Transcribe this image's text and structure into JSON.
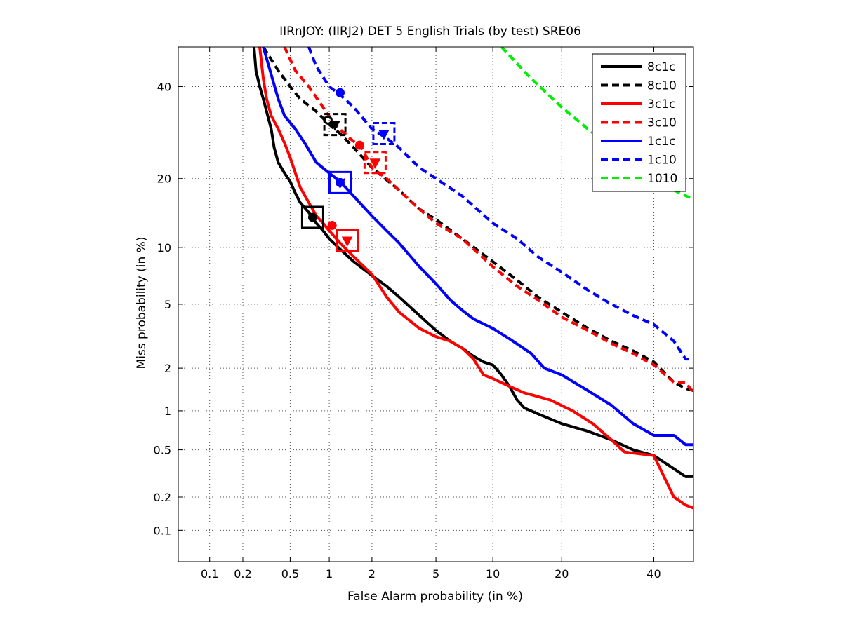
{
  "chart_data": {
    "type": "line",
    "title": "IIRnJOY: (IIRJ2) DET 5 English Trials (by test) SRE06",
    "xlabel": "False Alarm probability (in %)",
    "ylabel": "Miss probability (in %)",
    "scale": "normal-deviate (probit) on both axes",
    "xlim": [
      0.05,
      50
    ],
    "ylim": [
      0.05,
      50
    ],
    "grid": true,
    "legend_position": "top-right",
    "x_ticks": [
      0.1,
      0.2,
      0.5,
      1,
      2,
      5,
      10,
      20,
      40
    ],
    "x_tick_labels": [
      "0.1",
      "0.2",
      "0.5",
      "1",
      "2",
      "5",
      "10",
      "20",
      "40"
    ],
    "y_ticks": [
      0.1,
      0.2,
      0.5,
      1,
      2,
      5,
      10,
      20,
      40
    ],
    "y_tick_labels": [
      "0.1",
      "0.2",
      "0.5",
      "1",
      "2",
      "5",
      "10",
      "20",
      "40"
    ],
    "series": [
      {
        "name": "8c1c",
        "color": "#000000",
        "dashed": false,
        "points": [
          [
            0.25,
            50
          ],
          [
            0.26,
            44
          ],
          [
            0.28,
            40
          ],
          [
            0.3,
            37
          ],
          [
            0.32,
            34
          ],
          [
            0.35,
            30
          ],
          [
            0.37,
            26
          ],
          [
            0.4,
            23
          ],
          [
            0.45,
            21
          ],
          [
            0.5,
            19.5
          ],
          [
            0.55,
            17.5
          ],
          [
            0.6,
            16
          ],
          [
            0.7,
            14.5
          ],
          [
            0.8,
            13
          ],
          [
            0.9,
            12
          ],
          [
            1,
            11
          ],
          [
            1.2,
            9.8
          ],
          [
            1.5,
            8.5
          ],
          [
            2,
            7.2
          ],
          [
            2.5,
            6.3
          ],
          [
            3,
            5.5
          ],
          [
            4,
            4.3
          ],
          [
            5,
            3.5
          ],
          [
            6,
            3.0
          ],
          [
            7,
            2.7
          ],
          [
            8,
            2.4
          ],
          [
            9,
            2.2
          ],
          [
            10,
            2.1
          ],
          [
            11,
            1.8
          ],
          [
            12,
            1.5
          ],
          [
            13,
            1.2
          ],
          [
            14,
            1.05
          ],
          [
            16,
            0.95
          ],
          [
            20,
            0.8
          ],
          [
            25,
            0.7
          ],
          [
            30,
            0.6
          ],
          [
            35,
            0.5
          ],
          [
            40,
            0.45
          ],
          [
            45,
            0.35
          ],
          [
            48,
            0.3
          ],
          [
            50,
            0.3
          ]
        ]
      },
      {
        "name": "8c10",
        "color": "#000000",
        "dashed": true,
        "points": [
          [
            0.3,
            50
          ],
          [
            0.4,
            44
          ],
          [
            0.5,
            40
          ],
          [
            0.6,
            37
          ],
          [
            0.8,
            34
          ],
          [
            1,
            31
          ],
          [
            1.2,
            29
          ],
          [
            1.5,
            26
          ],
          [
            2,
            22
          ],
          [
            3,
            18
          ],
          [
            4,
            15
          ],
          [
            5,
            13.5
          ],
          [
            7,
            11
          ],
          [
            10,
            8.5
          ],
          [
            13,
            6.8
          ],
          [
            16,
            5.5
          ],
          [
            20,
            4.5
          ],
          [
            25,
            3.6
          ],
          [
            30,
            3.0
          ],
          [
            35,
            2.6
          ],
          [
            40,
            2.2
          ],
          [
            45,
            1.6
          ],
          [
            48,
            1.45
          ],
          [
            50,
            1.4
          ]
        ]
      },
      {
        "name": "3c1c",
        "color": "#ff0000",
        "dashed": false,
        "points": [
          [
            0.28,
            50
          ],
          [
            0.3,
            42
          ],
          [
            0.32,
            37
          ],
          [
            0.35,
            33
          ],
          [
            0.4,
            30
          ],
          [
            0.45,
            27
          ],
          [
            0.5,
            24
          ],
          [
            0.55,
            21
          ],
          [
            0.6,
            18.5
          ],
          [
            0.7,
            16
          ],
          [
            0.8,
            14
          ],
          [
            0.9,
            13
          ],
          [
            1,
            12
          ],
          [
            1.2,
            10.5
          ],
          [
            1.5,
            9
          ],
          [
            2,
            7.3
          ],
          [
            2.5,
            5.5
          ],
          [
            3,
            4.5
          ],
          [
            4,
            3.6
          ],
          [
            5,
            3.2
          ],
          [
            6,
            3.0
          ],
          [
            7,
            2.7
          ],
          [
            8,
            2.3
          ],
          [
            9,
            1.8
          ],
          [
            10,
            1.7
          ],
          [
            12,
            1.5
          ],
          [
            14,
            1.35
          ],
          [
            18,
            1.2
          ],
          [
            22,
            1.0
          ],
          [
            26,
            0.8
          ],
          [
            30,
            0.6
          ],
          [
            33,
            0.48
          ],
          [
            40,
            0.45
          ],
          [
            45,
            0.2
          ],
          [
            48,
            0.17
          ],
          [
            50,
            0.16
          ]
        ]
      },
      {
        "name": "3c10",
        "color": "#ff0000",
        "dashed": true,
        "points": [
          [
            0.45,
            50
          ],
          [
            0.55,
            44
          ],
          [
            0.7,
            40
          ],
          [
            0.9,
            35
          ],
          [
            1.1,
            31
          ],
          [
            1.4,
            28
          ],
          [
            1.7,
            26
          ],
          [
            2,
            22
          ],
          [
            2.5,
            20
          ],
          [
            3,
            18
          ],
          [
            4,
            15
          ],
          [
            5,
            13
          ],
          [
            7,
            11
          ],
          [
            10,
            8
          ],
          [
            13,
            6.3
          ],
          [
            16,
            5.3
          ],
          [
            20,
            4.2
          ],
          [
            25,
            3.5
          ],
          [
            30,
            2.9
          ],
          [
            35,
            2.5
          ],
          [
            40,
            2.1
          ],
          [
            45,
            1.6
          ],
          [
            48,
            1.6
          ],
          [
            50,
            1.35
          ]
        ]
      },
      {
        "name": "1c1c",
        "color": "#0000ff",
        "dashed": false,
        "points": [
          [
            0.3,
            50
          ],
          [
            0.35,
            43
          ],
          [
            0.4,
            37
          ],
          [
            0.45,
            33
          ],
          [
            0.55,
            30
          ],
          [
            0.65,
            27
          ],
          [
            0.8,
            23
          ],
          [
            1,
            21
          ],
          [
            1.2,
            19.5
          ],
          [
            1.5,
            17
          ],
          [
            2,
            14
          ],
          [
            2.5,
            12
          ],
          [
            3,
            10.5
          ],
          [
            4,
            8
          ],
          [
            5,
            6.5
          ],
          [
            6,
            5.3
          ],
          [
            7,
            4.6
          ],
          [
            8,
            4.1
          ],
          [
            10,
            3.6
          ],
          [
            12,
            3.1
          ],
          [
            15,
            2.5
          ],
          [
            17,
            2.0
          ],
          [
            20,
            1.8
          ],
          [
            25,
            1.4
          ],
          [
            30,
            1.1
          ],
          [
            35,
            0.8
          ],
          [
            40,
            0.65
          ],
          [
            45,
            0.65
          ],
          [
            48,
            0.55
          ],
          [
            50,
            0.55
          ]
        ]
      },
      {
        "name": "1c10",
        "color": "#0000ff",
        "dashed": true,
        "points": [
          [
            0.7,
            50
          ],
          [
            0.8,
            45
          ],
          [
            1,
            40
          ],
          [
            1.2,
            38
          ],
          [
            1.5,
            35
          ],
          [
            2,
            30
          ],
          [
            2.5,
            28
          ],
          [
            3,
            26
          ],
          [
            4,
            22
          ],
          [
            5,
            20
          ],
          [
            7,
            17
          ],
          [
            10,
            13
          ],
          [
            13,
            11
          ],
          [
            16,
            9
          ],
          [
            20,
            7.5
          ],
          [
            25,
            6
          ],
          [
            30,
            5
          ],
          [
            35,
            4.3
          ],
          [
            40,
            3.8
          ],
          [
            45,
            3.0
          ],
          [
            48,
            2.3
          ],
          [
            50,
            2.3
          ]
        ]
      },
      {
        "name": "1010",
        "color": "#00ee00",
        "dashed": true,
        "points": [
          [
            11,
            50
          ],
          [
            15,
            42
          ],
          [
            20,
            35
          ],
          [
            25,
            30
          ],
          [
            30,
            26
          ],
          [
            35,
            22.5
          ],
          [
            40,
            20
          ],
          [
            45,
            18
          ],
          [
            50,
            16.5
          ]
        ]
      }
    ],
    "markers": [
      {
        "series": "8c1c",
        "shape": "circle",
        "x": 0.75,
        "y": 13.8
      },
      {
        "series": "8c1c",
        "shape": "square",
        "x": 0.75,
        "y": 13.8
      },
      {
        "series": "8c10",
        "shape": "open-circle",
        "x": 0.98,
        "y": 32
      },
      {
        "series": "8c10",
        "shape": "triangle",
        "x": 1.1,
        "y": 31
      },
      {
        "series": "8c10",
        "shape": "square",
        "x": 1.1,
        "y": 31
      },
      {
        "series": "3c1c",
        "shape": "circle",
        "x": 1.05,
        "y": 12.7
      },
      {
        "series": "3c1c",
        "shape": "triangle",
        "x": 1.35,
        "y": 10.8
      },
      {
        "series": "3c1c",
        "shape": "square",
        "x": 1.35,
        "y": 10.8
      },
      {
        "series": "3c10",
        "shape": "circle",
        "x": 1.65,
        "y": 26.5
      },
      {
        "series": "3c10",
        "shape": "triangle",
        "x": 2.1,
        "y": 23
      },
      {
        "series": "3c10",
        "shape": "square",
        "x": 2.1,
        "y": 23
      },
      {
        "series": "1c1c",
        "shape": "circle",
        "x": 1.2,
        "y": 19.3
      },
      {
        "series": "1c1c",
        "shape": "triangle",
        "x": 1.2,
        "y": 19.3
      },
      {
        "series": "1c1c",
        "shape": "square",
        "x": 1.2,
        "y": 19.3
      },
      {
        "series": "1c10",
        "shape": "circle",
        "x": 1.2,
        "y": 38.5
      },
      {
        "series": "1c10",
        "shape": "triangle",
        "x": 2.4,
        "y": 29
      },
      {
        "series": "1c10",
        "shape": "square",
        "x": 2.4,
        "y": 29
      }
    ]
  }
}
